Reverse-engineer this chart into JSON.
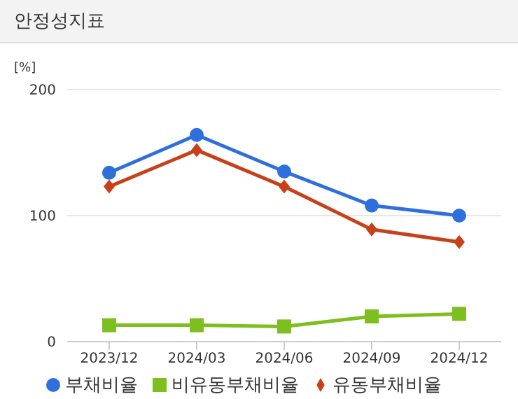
{
  "chart_data": {
    "type": "line",
    "title": "안정성지표",
    "ylabel": "[%]",
    "categories": [
      "2023/12",
      "2024/03",
      "2024/06",
      "2024/09",
      "2024/12"
    ],
    "series": [
      {
        "name": "부채비율",
        "color": "#2f6fdc",
        "marker": "circle",
        "values": [
          134,
          164,
          135,
          108,
          100
        ]
      },
      {
        "name": "유동부채비율",
        "color": "#c8401a",
        "marker": "diamond",
        "values": [
          123,
          152,
          123,
          89,
          79
        ]
      },
      {
        "name": "비유동부채비율",
        "color": "#7cbf1e",
        "marker": "square",
        "values": [
          13,
          13,
          12,
          20,
          22
        ]
      }
    ],
    "ylim": [
      0,
      200
    ],
    "yticks": [
      0,
      100,
      200
    ],
    "grid": "y",
    "legend": "bottom"
  }
}
